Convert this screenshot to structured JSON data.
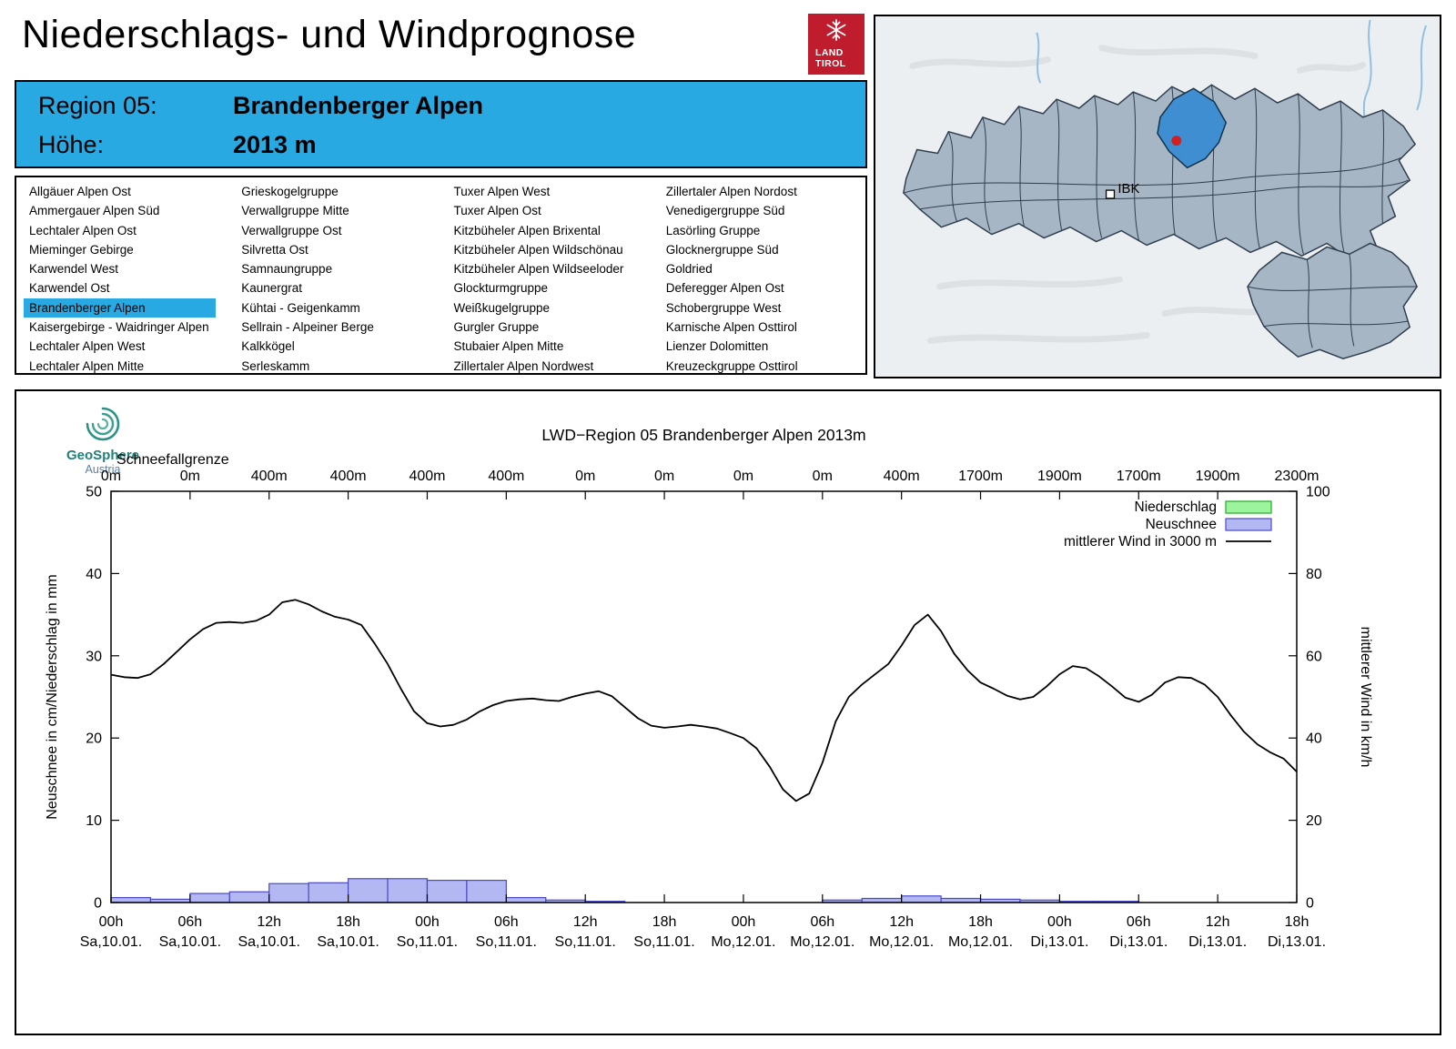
{
  "page": {
    "title": "Niederschlags- und Windprognose"
  },
  "logo": {
    "line1": "LAND",
    "line2": "TIROL"
  },
  "colors": {
    "accent_blue": "#29a9e2",
    "brand_red": "#bf1d2d",
    "map_region": "#a7b6c4",
    "map_highlight": "#3f8ed2",
    "station_dot": "#d02020"
  },
  "header": {
    "region_label": "Region 05:",
    "region_value": "Brandenberger Alpen",
    "altitude_label": "Höhe:",
    "altitude_value": "2013 m"
  },
  "region_list": {
    "selected": "Brandenberger Alpen",
    "columns": [
      [
        "Allgäuer Alpen Ost",
        "Ammergauer Alpen Süd",
        "Lechtaler Alpen Ost",
        "Mieminger Gebirge",
        "Karwendel West",
        "Karwendel Ost",
        "Brandenberger Alpen",
        "Kaisergebirge - Waidringer Alpen",
        "Lechtaler Alpen West",
        "Lechtaler Alpen Mitte"
      ],
      [
        "Grieskogelgruppe",
        "Verwallgruppe Mitte",
        "Verwallgruppe Ost",
        "Silvretta Ost",
        "Samnaungruppe",
        "Kaunergrat",
        "Kühtai - Geigenkamm",
        "Sellrain - Alpeiner Berge",
        "Kalkkögel",
        "Serleskamm"
      ],
      [
        "Tuxer Alpen West",
        "Tuxer Alpen Ost",
        "Kitzbüheler Alpen Brixental",
        "Kitzbüheler Alpen Wildschönau",
        "Kitzbüheler Alpen Wildseeloder",
        "Glockturmgruppe",
        "Weißkugelgruppe",
        "Gurgler Gruppe",
        "Stubaier Alpen Mitte",
        "Zillertaler Alpen Nordwest"
      ],
      [
        "Zillertaler Alpen Nordost",
        "Venedigergruppe Süd",
        "Lasörling Gruppe",
        "Glocknergruppe Süd",
        "Goldried",
        "Deferegger Alpen Ost",
        "Schobergruppe West",
        "Karnische Alpen Osttirol",
        "Lienzer Dolomitten",
        "Kreuzeckgruppe Osttirol"
      ]
    ]
  },
  "map": {
    "ibk_label": "IBK"
  },
  "geosphere": {
    "name": "GeoSphere",
    "country": "Austria"
  },
  "chart_data": {
    "type": "mixed",
    "title": "LWD−Region 05 Brandenberger Alpen 2013m",
    "left_axis": {
      "label": "Neuschnee in cm/Niederschlag in mm",
      "range": [
        0,
        50
      ],
      "ticks": [
        0,
        10,
        20,
        30,
        40,
        50
      ]
    },
    "right_axis": {
      "label": "mittlerer Wind in km/h",
      "range": [
        0,
        100
      ],
      "ticks": [
        0,
        20,
        40,
        60,
        80,
        100
      ]
    },
    "x_axis": {
      "total_hours": 90,
      "tick_hours": [
        0,
        6,
        12,
        18,
        24,
        30,
        36,
        42,
        48,
        54,
        60,
        66,
        72,
        78,
        84,
        90
      ],
      "tick_labels": [
        "00h",
        "06h",
        "12h",
        "18h",
        "00h",
        "06h",
        "12h",
        "18h",
        "00h",
        "06h",
        "12h",
        "18h",
        "00h",
        "06h",
        "12h",
        "18h"
      ],
      "tick_dates": [
        "Sa,10.01.",
        "Sa,10.01.",
        "Sa,10.01.",
        "Sa,10.01.",
        "So,11.01.",
        "So,11.01.",
        "So,11.01.",
        "So,11.01.",
        "Mo,12.01.",
        "Mo,12.01.",
        "Mo,12.01.",
        "Mo,12.01.",
        "Di,13.01.",
        "Di,13.01.",
        "Di,13.01.",
        "Di,13.01."
      ]
    },
    "snowline": {
      "label": "Schneefallgrenze",
      "values": [
        "0m",
        "0m",
        "400m",
        "400m",
        "400m",
        "400m",
        "0m",
        "0m",
        "0m",
        "0m",
        "400m",
        "1700m",
        "1900m",
        "1700m",
        "1900m",
        "2300m"
      ]
    },
    "legend": [
      {
        "label": "Niederschlag",
        "swatch": "box",
        "fill": "#9cf59c",
        "stroke": "#1fae1f"
      },
      {
        "label": "Neuschnee",
        "swatch": "box",
        "fill": "#b3b8f2",
        "stroke": "#4a4ac8"
      },
      {
        "label": "mittlerer Wind in 3000 m",
        "swatch": "line",
        "stroke": "#000000"
      }
    ],
    "colors": {
      "wind_line": "#000000",
      "neuschnee_fill": "#b3b8f2",
      "neuschnee_stroke": "#4a4ac8"
    },
    "wind": {
      "name": "mittlerer Wind in 3000 m",
      "unit": "km/h",
      "start_hour": 0,
      "step_hours": 1,
      "values": [
        55.4,
        54.8,
        54.6,
        55.5,
        58.0,
        61.0,
        64.0,
        66.5,
        68.0,
        68.2,
        68.0,
        68.5,
        70.0,
        73.0,
        73.6,
        72.5,
        70.8,
        69.5,
        68.8,
        67.5,
        63.0,
        58.0,
        52.0,
        46.5,
        43.6,
        42.8,
        43.2,
        44.5,
        46.5,
        48.0,
        49.0,
        49.4,
        49.6,
        49.2,
        49.0,
        50.0,
        50.8,
        51.4,
        50.2,
        47.5,
        44.8,
        43.0,
        42.5,
        42.8,
        43.2,
        42.8,
        42.3,
        41.2,
        40.0,
        37.5,
        33.0,
        27.5,
        24.7,
        26.5,
        34.0,
        44.0,
        50.0,
        53.0,
        55.5,
        58.0,
        62.5,
        67.5,
        70.0,
        66.0,
        60.5,
        56.5,
        53.5,
        52.0,
        50.3,
        49.4,
        50.0,
        52.5,
        55.5,
        57.5,
        57.0,
        55.0,
        52.5,
        49.8,
        48.8,
        50.5,
        53.5,
        54.8,
        54.6,
        53.0,
        50.0,
        45.5,
        41.5,
        38.5,
        36.5,
        35.0,
        31.8
      ]
    },
    "neuschnee": {
      "name": "Neuschnee",
      "unit": "cm",
      "bin_hours": 3,
      "values": [
        0.6,
        0.4,
        1.1,
        1.3,
        2.3,
        2.4,
        2.9,
        2.9,
        2.7,
        2.7,
        0.6,
        0.3,
        0.15,
        0,
        0,
        0,
        0,
        0,
        0.3,
        0.5,
        0.8,
        0.5,
        0.4,
        0.3,
        0.15,
        0.15,
        0,
        0,
        0,
        0
      ]
    },
    "niederschlag": {
      "name": "Niederschlag",
      "unit": "mm",
      "visible_bars": false
    }
  }
}
